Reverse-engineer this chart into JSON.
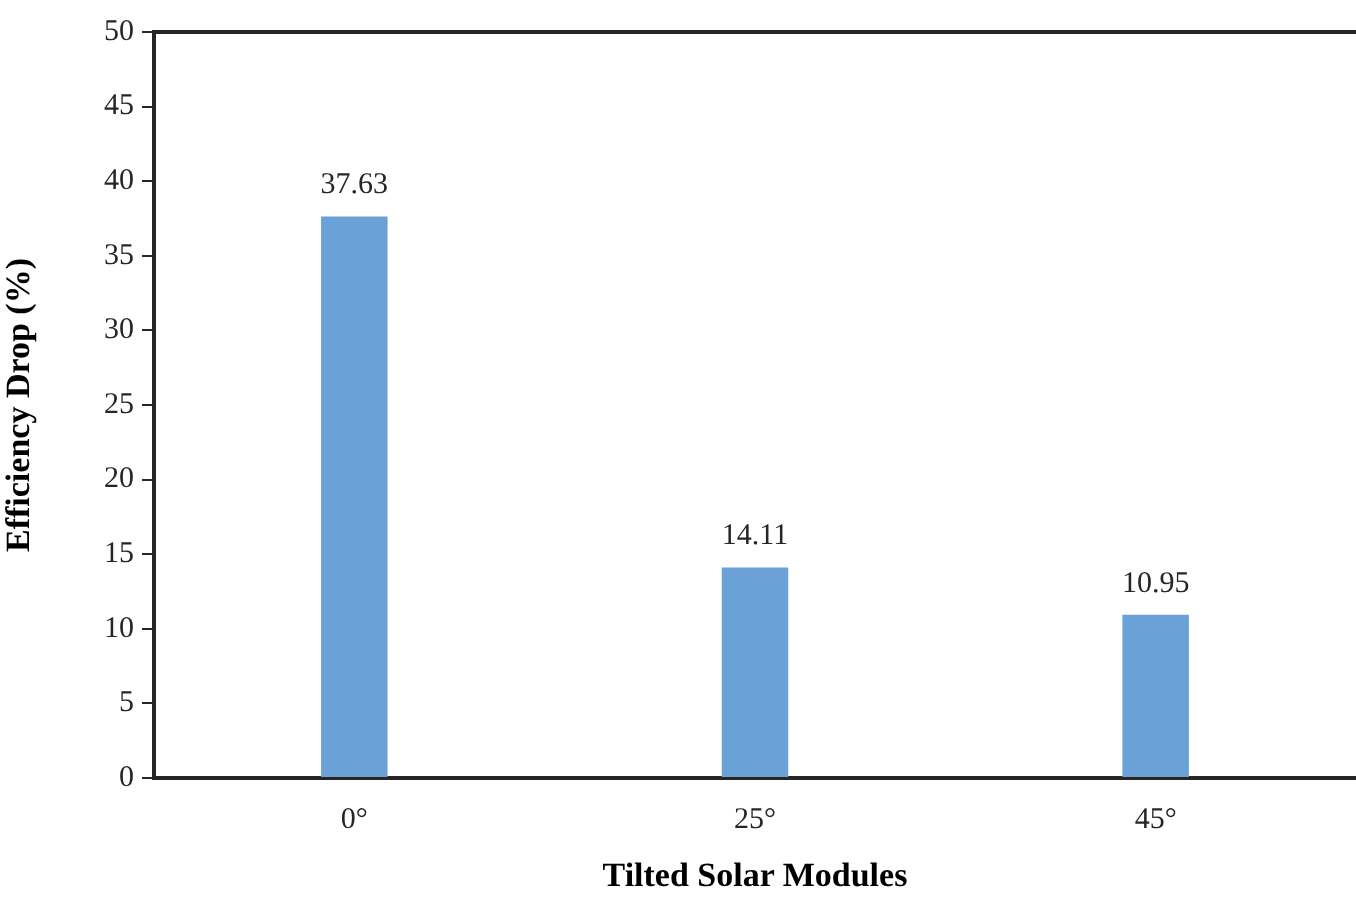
{
  "chart_data": {
    "type": "bar",
    "xlabel": "Tilted Solar Modules",
    "ylabel": "Efficiency Drop (%)",
    "categories": [
      "0°",
      "25°",
      "45°"
    ],
    "values": [
      37.63,
      14.11,
      10.95
    ],
    "color": "#6aa1d6",
    "ylim": [
      0,
      50
    ],
    "yticks": [
      0,
      5,
      10,
      15,
      20,
      25,
      30,
      35,
      40,
      45,
      50
    ],
    "data_labels": true,
    "grid": false
  }
}
